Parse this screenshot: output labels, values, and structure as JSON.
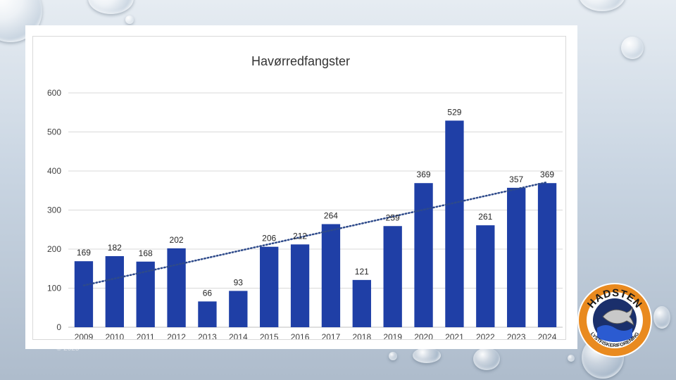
{
  "chart_data": {
    "type": "bar",
    "title": "Havørredfangster",
    "categories": [
      "2009",
      "2010",
      "2011",
      "2012",
      "2013",
      "2014",
      "2015",
      "2016",
      "2017",
      "2018",
      "2019",
      "2020",
      "2021",
      "2022",
      "2023",
      "2024"
    ],
    "series": [
      {
        "values": [
          169,
          182,
          168,
          202,
          66,
          93,
          206,
          212,
          264,
          121,
          259,
          369,
          529,
          261,
          357,
          369
        ]
      }
    ],
    "ylim": [
      0,
      600
    ],
    "yticks": [
      0,
      100,
      200,
      300,
      400,
      500,
      600
    ],
    "bar_color": "#1f3fa6",
    "trendline": {
      "style": "dotted",
      "color": "#2e4a8a"
    },
    "grid": true,
    "data_labels": true,
    "legend": "none"
  },
  "logo": {
    "top_text": "HADSTEN",
    "bottom_text": "LYSTFISKERIFORENING"
  },
  "footer_note": "© 2025"
}
